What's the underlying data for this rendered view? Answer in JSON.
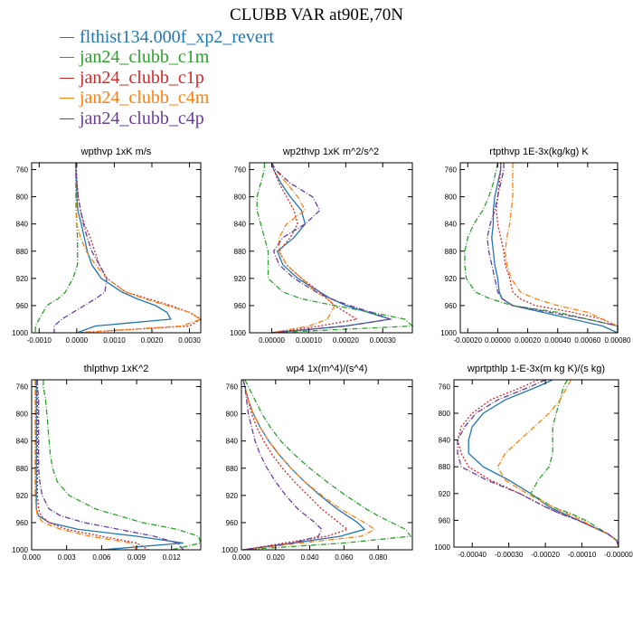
{
  "title": "CLUBB VAR at90E,70N",
  "legend": [
    {
      "name": "flthist134.000f_xp2_revert",
      "color": "#1f77b4"
    },
    {
      "name": "jan24_clubb_c1m",
      "color": "#2ca02c"
    },
    {
      "name": "jan24_clubb_c1p",
      "color": "#d62728"
    },
    {
      "name": "jan24_clubb_c4m",
      "color": "#ff7f0e"
    },
    {
      "name": "jan24_clubb_c4p",
      "color": "#6a3d9a"
    }
  ],
  "chart_data": [
    {
      "type": "line",
      "title": "wpthvp  1xK m/s",
      "xlim": [
        -0.0012,
        0.0033
      ],
      "ylim": [
        1000,
        750
      ],
      "xticks": [
        -0.001,
        0,
        0.001,
        0.002,
        0.003
      ],
      "xtick_labels": [
        "-0.0010",
        "0.0000",
        "0.0010",
        "0.0020",
        "0.0030"
      ],
      "yticks": [
        760,
        800,
        840,
        880,
        920,
        960,
        1000
      ],
      "y": [
        750,
        760,
        780,
        800,
        820,
        840,
        860,
        880,
        900,
        920,
        940,
        950,
        960,
        970,
        980,
        990,
        1000
      ],
      "series": [
        {
          "values": [
            -2e-05,
            -2e-05,
            -1e-05,
            0.0,
            3e-05,
            0.00012,
            0.0002,
            0.00028,
            0.0004,
            0.00065,
            0.0012,
            0.0016,
            0.0021,
            0.0024,
            0.0025,
            0.0005,
            0.0
          ]
        },
        {
          "values": [
            -3e-05,
            -3e-05,
            -2e-05,
            -2e-05,
            -1e-05,
            0.0,
            2e-05,
            2e-05,
            2e-05,
            -0.0001,
            -0.0003,
            -0.0005,
            -0.0008,
            -0.0009,
            -0.001,
            -0.0011,
            -0.0011
          ]
        },
        {
          "values": [
            -2e-05,
            -1e-05,
            1e-05,
            4e-05,
            0.0001,
            0.0002,
            0.00036,
            0.00048,
            0.0006,
            0.0008,
            0.0013,
            0.0019,
            0.0025,
            0.003,
            0.0033,
            0.003,
            0.0
          ]
        },
        {
          "values": [
            -3e-05,
            -3e-05,
            -3e-05,
            -3e-05,
            -2e-05,
            0.0,
            0.0001,
            0.00025,
            0.0005,
            0.0008,
            0.0013,
            0.0018,
            0.0024,
            0.003,
            0.0033,
            0.0028,
            0.0
          ]
        },
        {
          "values": [
            -2e-05,
            -2e-05,
            0.0,
            4e-05,
            0.0001,
            0.00018,
            0.00028,
            0.0004,
            0.0006,
            0.0008,
            0.00075,
            0.0005,
            0.0002,
            -0.0001,
            -0.0004,
            -0.0006,
            -0.0006
          ]
        }
      ]
    },
    {
      "type": "line",
      "title": "wp2thvp  1xK m^2/s^2",
      "xlim": [
        -6e-05,
        0.00038
      ],
      "ylim": [
        1000,
        750
      ],
      "xticks": [
        0,
        0.0001,
        0.0002,
        0.0003
      ],
      "xtick_labels": [
        "0.00000",
        "0.00010",
        "0.00020",
        "0.00030"
      ],
      "yticks": [
        760,
        800,
        840,
        880,
        920,
        960,
        1000
      ],
      "y": [
        750,
        760,
        780,
        800,
        820,
        840,
        860,
        880,
        900,
        920,
        940,
        950,
        960,
        970,
        980,
        990,
        1000
      ],
      "series": [
        {
          "values": [
            0.0,
            5e-06,
            2.5e-05,
            5e-05,
            8e-05,
            9e-05,
            6e-05,
            1.5e-05,
            3e-05,
            7e-05,
            0.00013,
            0.00016,
            0.0002,
            0.00026,
            0.00032,
            0.0002,
            0.0
          ]
        },
        {
          "values": [
            -2e-05,
            -2e-05,
            -3e-05,
            -4e-05,
            -4e-05,
            -3e-05,
            -2e-05,
            -1e-05,
            -1e-05,
            -1e-05,
            3e-05,
            8e-05,
            0.00017,
            0.00027,
            0.00036,
            0.00038,
            0.0
          ]
        },
        {
          "values": [
            0.0,
            5e-06,
            2e-05,
            4e-05,
            6e-05,
            7e-05,
            5e-05,
            2e-05,
            4e-05,
            8e-05,
            0.00013,
            0.00015,
            0.00017,
            0.0002,
            0.00023,
            0.00013,
            0.0
          ]
        },
        {
          "values": [
            0.0,
            1e-05,
            4e-05,
            7e-05,
            9e-05,
            4e-05,
            2e-05,
            2e-05,
            4e-05,
            8e-05,
            0.00012,
            0.00015,
            0.00017,
            0.00016,
            0.00015,
            0.0001,
            0.0
          ]
        },
        {
          "values": [
            0.0,
            1e-05,
            5e-05,
            0.00011,
            0.00013,
            9e-05,
            3e-05,
            5e-06,
            2e-05,
            6e-05,
            0.00012,
            0.00016,
            0.00021,
            0.00027,
            0.00032,
            0.0002,
            0.0
          ]
        }
      ]
    },
    {
      "type": "line",
      "title": "rtpthvp  1E-3x(kg/kg) K",
      "xlim": [
        -0.00025,
        0.0008
      ],
      "ylim": [
        1000,
        750
      ],
      "xticks": [
        -0.0002,
        0,
        0.0002,
        0.0004,
        0.0006,
        0.0008
      ],
      "xtick_labels": [
        "-0.00020",
        "0.00000",
        "0.00020",
        "0.00040",
        "0.00060",
        "0.00080"
      ],
      "yticks": [
        760,
        800,
        840,
        880,
        920,
        960,
        1000
      ],
      "y": [
        750,
        760,
        780,
        800,
        820,
        840,
        860,
        880,
        900,
        920,
        940,
        950,
        960,
        970,
        980,
        990,
        1000
      ],
      "series": [
        {
          "values": [
            2e-05,
            2e-05,
            0.0,
            -2e-05,
            -3e-05,
            -3e-05,
            -4e-05,
            -3e-05,
            -2e-05,
            0.0,
            1e-05,
            3e-05,
            0.0001,
            0.0003,
            0.0005,
            0.0007,
            0.0008
          ]
        },
        {
          "values": [
            0.0,
            -1e-05,
            -3e-05,
            -6e-05,
            -0.0001,
            -0.00016,
            -0.0002,
            -0.00022,
            -0.00022,
            -0.00021,
            -0.00015,
            -5e-05,
            0.0001,
            0.0004,
            0.0006,
            0.0008,
            0.0008
          ]
        },
        {
          "values": [
            2e-05,
            2e-05,
            1e-05,
            0.0,
            -1e-05,
            0.0,
            2e-05,
            4e-05,
            5e-05,
            8e-05,
            0.0001,
            0.00015,
            0.00025,
            0.0005,
            0.0007,
            0.0008,
            0.0008
          ]
        },
        {
          "values": [
            0.0001,
            0.0001,
            0.0001,
            0.0001,
            9e-05,
            8e-05,
            6e-05,
            5e-05,
            6e-05,
            9e-05,
            0.00015,
            0.00025,
            0.0004,
            0.0006,
            0.0007,
            0.0008,
            0.0008
          ]
        },
        {
          "values": [
            4e-05,
            4e-05,
            2e-05,
            0.0,
            -2e-05,
            -5e-05,
            -7e-05,
            -6e-05,
            -4e-05,
            -2e-05,
            0.0,
            3e-05,
            0.0001,
            0.00035,
            0.0006,
            0.0008,
            0.0008
          ]
        }
      ]
    },
    {
      "type": "line",
      "title": "thlpthvp  1xK^2",
      "xlim": [
        0.0,
        0.0145
      ],
      "ylim": [
        1000,
        750
      ],
      "xticks": [
        0,
        0.003,
        0.006,
        0.009,
        0.012
      ],
      "xtick_labels": [
        "0.000",
        "0.003",
        "0.006",
        "0.009",
        "0.012"
      ],
      "yticks": [
        760,
        800,
        840,
        880,
        920,
        960,
        1000
      ],
      "y": [
        750,
        760,
        780,
        800,
        820,
        840,
        860,
        880,
        900,
        920,
        940,
        950,
        960,
        970,
        980,
        990,
        1000
      ],
      "series": [
        {
          "values": [
            0.0004,
            0.0004,
            0.0004,
            0.0004,
            0.0004,
            0.0004,
            0.0004,
            0.0004,
            0.0004,
            0.0004,
            0.0004,
            0.0006,
            0.0015,
            0.004,
            0.009,
            0.013,
            0.006
          ]
        },
        {
          "values": [
            0.001,
            0.001,
            0.0012,
            0.0013,
            0.0014,
            0.0015,
            0.0016,
            0.0018,
            0.0022,
            0.0032,
            0.0055,
            0.0075,
            0.0095,
            0.0125,
            0.0143,
            0.0145,
            0.012
          ]
        },
        {
          "values": [
            0.0005,
            0.0005,
            0.0005,
            0.0005,
            0.0005,
            0.0005,
            0.0005,
            0.0005,
            0.0005,
            0.0005,
            0.0006,
            0.0008,
            0.0015,
            0.003,
            0.006,
            0.009,
            0.01
          ]
        },
        {
          "values": [
            0.0003,
            0.0003,
            0.0003,
            0.0003,
            0.0003,
            0.0003,
            0.0003,
            0.0003,
            0.0003,
            0.0003,
            0.0004,
            0.0005,
            0.001,
            0.0025,
            0.005,
            0.0085,
            0.009
          ]
        },
        {
          "values": [
            0.0005,
            0.0005,
            0.0006,
            0.0006,
            0.0006,
            0.0006,
            0.0006,
            0.0006,
            0.0007,
            0.0009,
            0.0015,
            0.0025,
            0.0045,
            0.0075,
            0.0105,
            0.0125,
            0.013
          ]
        }
      ]
    },
    {
      "type": "line",
      "title": "wp4  1x(m^4)/(s^4)",
      "xlim": [
        0.0,
        0.1
      ],
      "ylim": [
        1000,
        750
      ],
      "xticks": [
        0,
        0.02,
        0.04,
        0.06,
        0.08
      ],
      "xtick_labels": [
        "0.000",
        "0.020",
        "0.040",
        "0.060",
        "0.080"
      ],
      "yticks": [
        760,
        800,
        840,
        880,
        920,
        960,
        1000
      ],
      "y": [
        750,
        760,
        780,
        800,
        820,
        840,
        860,
        880,
        900,
        920,
        940,
        950,
        960,
        970,
        980,
        990,
        1000
      ],
      "series": [
        {
          "values": [
            0.001,
            0.002,
            0.004,
            0.007,
            0.011,
            0.016,
            0.022,
            0.029,
            0.037,
            0.046,
            0.056,
            0.062,
            0.068,
            0.072,
            0.058,
            0.03,
            0.001
          ]
        },
        {
          "values": [
            0.002,
            0.004,
            0.008,
            0.012,
            0.017,
            0.023,
            0.031,
            0.04,
            0.05,
            0.061,
            0.073,
            0.08,
            0.088,
            0.096,
            0.099,
            0.06,
            0.001
          ]
        },
        {
          "values": [
            0.001,
            0.002,
            0.004,
            0.006,
            0.009,
            0.013,
            0.018,
            0.024,
            0.031,
            0.039,
            0.047,
            0.052,
            0.057,
            0.062,
            0.05,
            0.025,
            0.001
          ]
        },
        {
          "values": [
            0.001,
            0.002,
            0.004,
            0.007,
            0.011,
            0.016,
            0.022,
            0.029,
            0.037,
            0.047,
            0.058,
            0.065,
            0.072,
            0.078,
            0.07,
            0.035,
            0.001
          ]
        },
        {
          "values": [
            0.001,
            0.002,
            0.003,
            0.004,
            0.006,
            0.008,
            0.011,
            0.015,
            0.02,
            0.026,
            0.033,
            0.038,
            0.043,
            0.047,
            0.045,
            0.03,
            0.001
          ]
        }
      ]
    },
    {
      "type": "line",
      "title": "wprtpthlp  1-E-3x(m kg K)/(s kg)",
      "xlim": [
        -0.00045,
        0.0
      ],
      "ylim": [
        1000,
        750
      ],
      "xticks": [
        -0.0004,
        -0.0003,
        -0.0002,
        -0.0001,
        0
      ],
      "xtick_labels": [
        "-0.00040",
        "-0.00030",
        "-0.00020",
        "-0.00010",
        "-0.00000"
      ],
      "yticks": [
        760,
        800,
        840,
        880,
        920,
        960,
        1000
      ],
      "y": [
        750,
        760,
        780,
        800,
        820,
        840,
        860,
        880,
        900,
        920,
        940,
        950,
        960,
        970,
        980,
        990,
        1000
      ],
      "series": [
        {
          "values": [
            -0.00018,
            -0.00022,
            -0.00031,
            -0.00037,
            -0.0004,
            -0.00041,
            -0.00041,
            -0.00037,
            -0.0003,
            -0.00024,
            -0.00019,
            -0.00015,
            -0.00011,
            -7e-05,
            -3e-05,
            -5e-06,
            0.0
          ]
        },
        {
          "values": [
            -0.00014,
            -0.00015,
            -0.00016,
            -0.00017,
            -0.00018,
            -0.00018,
            -0.00018,
            -0.00019,
            -0.00022,
            -0.00024,
            -0.00018,
            -0.00013,
            -9e-05,
            -6e-05,
            -3e-05,
            -5e-06,
            0.0
          ]
        },
        {
          "values": [
            -0.00022,
            -0.00026,
            -0.00035,
            -0.0004,
            -0.00043,
            -0.00044,
            -0.00043,
            -0.00041,
            -0.00035,
            -0.00027,
            -0.0002,
            -0.00016,
            -0.00011,
            -7e-05,
            -3e-05,
            -5e-06,
            0.0
          ]
        },
        {
          "values": [
            -0.00013,
            -0.00014,
            -0.00016,
            -0.00019,
            -0.00023,
            -0.00027,
            -0.00031,
            -0.00033,
            -0.00031,
            -0.00025,
            -0.00018,
            -0.00014,
            -0.0001,
            -7e-05,
            -3e-05,
            -5e-06,
            0.0
          ]
        },
        {
          "values": [
            -0.0002,
            -0.00024,
            -0.00033,
            -0.00039,
            -0.00042,
            -0.00044,
            -0.00044,
            -0.00043,
            -0.00036,
            -0.00027,
            -0.0002,
            -0.00016,
            -0.00011,
            -7e-05,
            -3e-05,
            -5e-06,
            0.0
          ]
        }
      ]
    }
  ]
}
